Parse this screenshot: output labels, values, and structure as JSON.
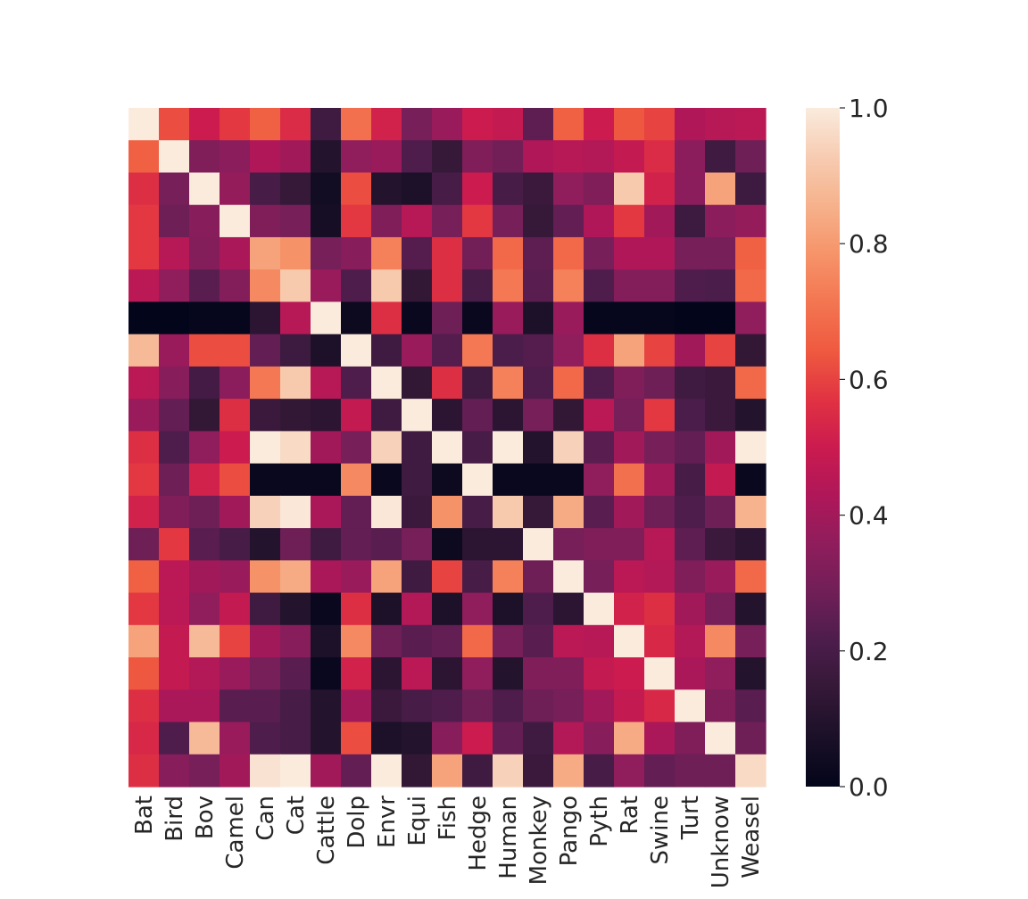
{
  "chart_data": {
    "type": "heatmap",
    "title": "",
    "xlabel": "",
    "ylabel": "",
    "x_categories": [
      "Bat",
      "Bird",
      "Bov",
      "Camel",
      "Can",
      "Cat",
      "Cattle",
      "Dolp",
      "Envr",
      "Equi",
      "Fish",
      "Hedge",
      "Human",
      "Monkey",
      "Pango",
      "Pyth",
      "Rat",
      "Swine",
      "Turt",
      "Unknow",
      "Weasel"
    ],
    "y_tick_labels_visible": false,
    "colorbar": {
      "range": [
        0.0,
        1.0
      ],
      "ticks": [
        {
          "value": 0.0,
          "label": "0.0"
        },
        {
          "value": 0.2,
          "label": "0.2"
        },
        {
          "value": 0.4,
          "label": "0.4"
        },
        {
          "value": 0.6,
          "label": "0.6"
        },
        {
          "value": 0.8,
          "label": "0.8"
        },
        {
          "value": 1.0,
          "label": "1.0"
        }
      ],
      "colormap": "rocket",
      "position": "right"
    },
    "grid": false,
    "values": [
      [
        1.0,
        0.62,
        0.5,
        0.58,
        0.66,
        0.55,
        0.18,
        0.7,
        0.52,
        0.3,
        0.38,
        0.5,
        0.48,
        0.25,
        0.66,
        0.5,
        0.64,
        0.6,
        0.43,
        0.45,
        0.46
      ],
      [
        0.66,
        1.0,
        0.32,
        0.35,
        0.43,
        0.4,
        0.1,
        0.36,
        0.38,
        0.22,
        0.15,
        0.32,
        0.29,
        0.43,
        0.45,
        0.44,
        0.48,
        0.55,
        0.35,
        0.18,
        0.28
      ],
      [
        0.56,
        0.3,
        1.0,
        0.37,
        0.2,
        0.15,
        0.05,
        0.62,
        0.1,
        0.08,
        0.2,
        0.5,
        0.2,
        0.16,
        0.36,
        0.32,
        0.92,
        0.52,
        0.35,
        0.82,
        0.17
      ],
      [
        0.58,
        0.28,
        0.34,
        1.0,
        0.32,
        0.3,
        0.06,
        0.58,
        0.32,
        0.45,
        0.3,
        0.58,
        0.3,
        0.15,
        0.26,
        0.43,
        0.58,
        0.4,
        0.17,
        0.35,
        0.37
      ],
      [
        0.58,
        0.45,
        0.33,
        0.42,
        0.82,
        0.78,
        0.3,
        0.34,
        0.74,
        0.23,
        0.56,
        0.29,
        0.68,
        0.25,
        0.68,
        0.3,
        0.43,
        0.43,
        0.3,
        0.3,
        0.66
      ],
      [
        0.46,
        0.36,
        0.24,
        0.33,
        0.76,
        0.92,
        0.38,
        0.22,
        0.92,
        0.14,
        0.56,
        0.2,
        0.72,
        0.24,
        0.74,
        0.22,
        0.33,
        0.33,
        0.22,
        0.21,
        0.68
      ],
      [
        0.0,
        0.0,
        0.01,
        0.01,
        0.12,
        0.45,
        1.0,
        0.03,
        0.56,
        0.02,
        0.28,
        0.02,
        0.38,
        0.08,
        0.38,
        0.01,
        0.01,
        0.01,
        0.0,
        0.0,
        0.36
      ],
      [
        0.88,
        0.38,
        0.62,
        0.62,
        0.26,
        0.17,
        0.08,
        1.0,
        0.18,
        0.38,
        0.23,
        0.72,
        0.21,
        0.23,
        0.36,
        0.56,
        0.82,
        0.6,
        0.4,
        0.6,
        0.14
      ],
      [
        0.46,
        0.34,
        0.19,
        0.35,
        0.72,
        0.92,
        0.45,
        0.22,
        1.0,
        0.14,
        0.56,
        0.18,
        0.74,
        0.22,
        0.68,
        0.22,
        0.32,
        0.28,
        0.18,
        0.16,
        0.68
      ],
      [
        0.38,
        0.26,
        0.14,
        0.56,
        0.16,
        0.14,
        0.12,
        0.48,
        0.18,
        1.0,
        0.12,
        0.26,
        0.12,
        0.3,
        0.14,
        0.46,
        0.3,
        0.58,
        0.21,
        0.16,
        0.1
      ],
      [
        0.56,
        0.22,
        0.36,
        0.5,
        1.0,
        0.96,
        0.4,
        0.3,
        0.94,
        0.18,
        1.0,
        0.2,
        1.0,
        0.1,
        0.94,
        0.24,
        0.4,
        0.3,
        0.26,
        0.4,
        1.0
      ],
      [
        0.58,
        0.28,
        0.52,
        0.62,
        0.02,
        0.02,
        0.02,
        0.76,
        0.02,
        0.18,
        0.03,
        1.0,
        0.02,
        0.02,
        0.02,
        0.36,
        0.7,
        0.4,
        0.2,
        0.48,
        0.02
      ],
      [
        0.52,
        0.32,
        0.28,
        0.4,
        0.94,
        0.99,
        0.42,
        0.26,
        0.99,
        0.16,
        0.78,
        0.2,
        0.92,
        0.15,
        0.84,
        0.24,
        0.4,
        0.28,
        0.22,
        0.28,
        0.86
      ],
      [
        0.28,
        0.58,
        0.24,
        0.2,
        0.1,
        0.28,
        0.18,
        0.26,
        0.24,
        0.3,
        0.03,
        0.12,
        0.12,
        1.0,
        0.3,
        0.32,
        0.32,
        0.45,
        0.25,
        0.16,
        0.12
      ],
      [
        0.66,
        0.46,
        0.4,
        0.38,
        0.78,
        0.84,
        0.42,
        0.38,
        0.82,
        0.18,
        0.6,
        0.2,
        0.74,
        0.28,
        1.0,
        0.3,
        0.46,
        0.44,
        0.32,
        0.38,
        0.68
      ],
      [
        0.58,
        0.46,
        0.36,
        0.48,
        0.18,
        0.1,
        0.02,
        0.56,
        0.08,
        0.44,
        0.08,
        0.36,
        0.08,
        0.22,
        0.12,
        1.0,
        0.52,
        0.56,
        0.4,
        0.3,
        0.1
      ],
      [
        0.82,
        0.48,
        0.88,
        0.6,
        0.4,
        0.34,
        0.08,
        0.76,
        0.28,
        0.24,
        0.26,
        0.68,
        0.3,
        0.24,
        0.46,
        0.45,
        1.0,
        0.54,
        0.44,
        0.76,
        0.3
      ],
      [
        0.64,
        0.48,
        0.44,
        0.38,
        0.3,
        0.24,
        0.02,
        0.52,
        0.12,
        0.46,
        0.12,
        0.36,
        0.1,
        0.32,
        0.32,
        0.48,
        0.5,
        1.0,
        0.42,
        0.36,
        0.1
      ],
      [
        0.56,
        0.42,
        0.42,
        0.24,
        0.24,
        0.2,
        0.1,
        0.4,
        0.16,
        0.2,
        0.22,
        0.28,
        0.22,
        0.28,
        0.3,
        0.4,
        0.48,
        0.54,
        1.0,
        0.32,
        0.24
      ],
      [
        0.54,
        0.22,
        0.88,
        0.38,
        0.22,
        0.2,
        0.1,
        0.62,
        0.08,
        0.1,
        0.34,
        0.5,
        0.26,
        0.18,
        0.44,
        0.34,
        0.84,
        0.42,
        0.32,
        1.0,
        0.28
      ],
      [
        0.56,
        0.34,
        0.3,
        0.4,
        0.98,
        1.0,
        0.4,
        0.26,
        1.0,
        0.14,
        0.82,
        0.18,
        0.94,
        0.16,
        0.84,
        0.2,
        0.36,
        0.26,
        0.28,
        0.28,
        0.96
      ]
    ]
  },
  "colors": {
    "background": "#ffffff",
    "tick_text": "#262626",
    "rocket_stops": [
      "#03051a",
      "#1a1027",
      "#341837",
      "#4c1d4b",
      "#701f57",
      "#8f1d5c",
      "#af1759",
      "#cb1b4f",
      "#e13342",
      "#ef5a40",
      "#f37651",
      "#f6946a",
      "#f6b28c",
      "#f7ccb2",
      "#faebdd"
    ]
  }
}
